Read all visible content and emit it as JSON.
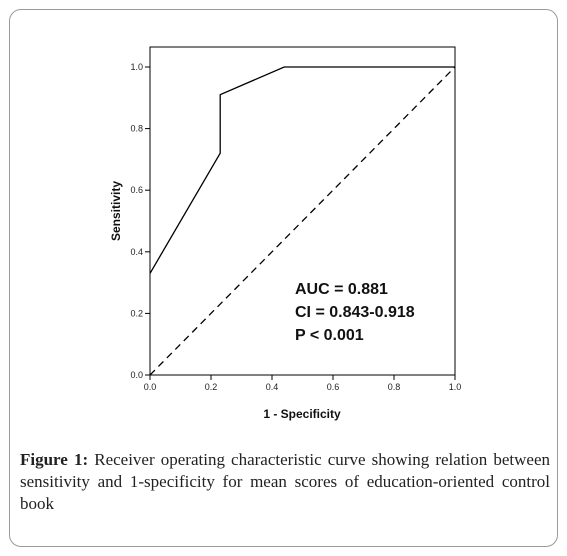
{
  "caption": {
    "label": "Figure 1:",
    "text": "Receiver operating characteristic curve showing relation between sensitivity and 1-specificity for mean scores of education-oriented control book"
  },
  "chart_data": {
    "type": "line",
    "xlabel": "1 - Specificity",
    "ylabel": "Sensitivity",
    "xlim": [
      0,
      1
    ],
    "ylim": [
      0,
      1
    ],
    "x_ticks": [
      "0.0",
      "0.2",
      "0.4",
      "0.6",
      "0.8",
      "1.0"
    ],
    "y_ticks": [
      "0.0",
      "0.2",
      "0.4",
      "0.6",
      "0.8",
      "1.0"
    ],
    "grid": false,
    "legend": "none",
    "series": [
      {
        "role": "roc-curve",
        "color": "#000000",
        "x": [
          0.0,
          0.23,
          0.23,
          0.44,
          1.0
        ],
        "y": [
          0.33,
          0.72,
          0.91,
          1.0,
          1.0
        ]
      },
      {
        "role": "reference-diagonal",
        "style": "dashed",
        "color": "#000000",
        "x": [
          0.0,
          1.0
        ],
        "y": [
          0.0,
          1.0
        ]
      }
    ],
    "annotations": [
      "AUC = 0.881",
      "CI = 0.843-0.918",
      "P < 0.001"
    ]
  }
}
